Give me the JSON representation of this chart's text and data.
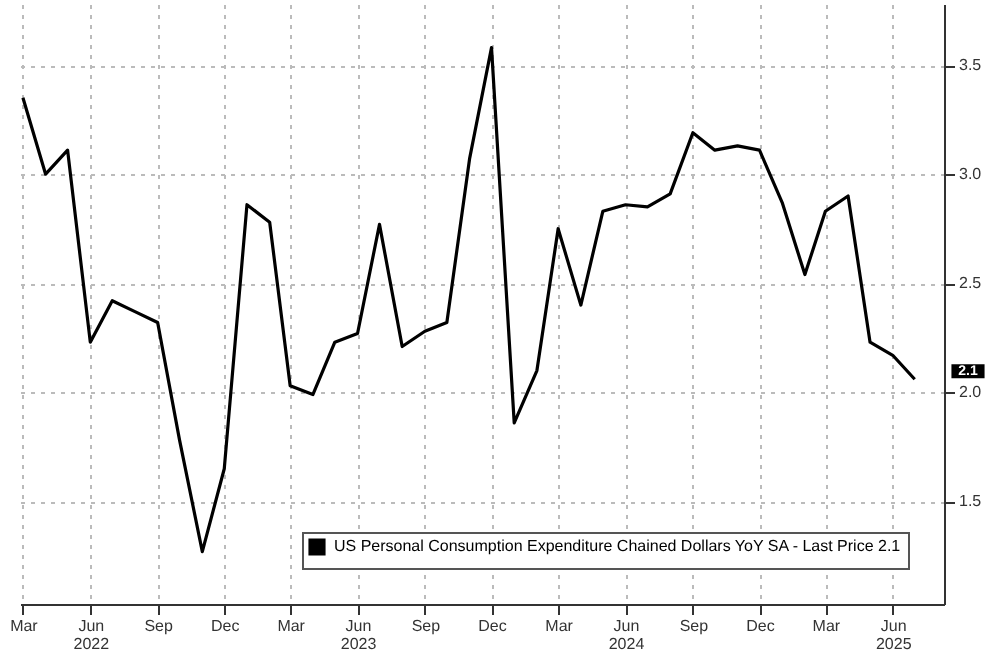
{
  "chart_data": {
    "type": "line",
    "x": [
      "2022-03",
      "2022-04",
      "2022-05",
      "2022-06",
      "2022-07",
      "2022-08",
      "2022-09",
      "2022-10",
      "2022-11",
      "2022-12",
      "2023-01",
      "2023-02",
      "2023-03",
      "2023-04",
      "2023-05",
      "2023-06",
      "2023-07",
      "2023-08",
      "2023-09",
      "2023-10",
      "2023-11",
      "2023-12",
      "2024-01",
      "2024-02",
      "2024-03",
      "2024-04",
      "2024-05",
      "2024-06",
      "2024-07",
      "2024-08",
      "2024-09",
      "2024-10",
      "2024-11",
      "2024-12",
      "2025-01",
      "2025-02",
      "2025-03",
      "2025-04",
      "2025-05",
      "2025-06",
      "2025-07"
    ],
    "series": [
      {
        "name": "US Personal Consumption Expenditure Chained Dollars YoY SA - Last Price 2.1",
        "color": "#000000",
        "values": [
          3.35,
          3.0,
          3.11,
          2.23,
          2.42,
          2.37,
          2.32,
          1.78,
          1.27,
          1.65,
          2.86,
          2.78,
          2.03,
          1.99,
          2.23,
          2.27,
          2.77,
          2.21,
          2.28,
          2.32,
          3.07,
          3.58,
          1.86,
          2.1,
          2.75,
          2.4,
          2.83,
          2.86,
          2.85,
          2.91,
          3.19,
          3.11,
          3.13,
          3.11,
          2.87,
          2.54,
          2.83,
          2.9,
          2.23,
          2.17,
          2.06
        ]
      }
    ],
    "xlim": [
      "2022-02-25",
      "2025-08-10"
    ],
    "xticks": [
      {
        "value": "2022-03",
        "label": "Mar"
      },
      {
        "value": "2022-06",
        "label": "Jun 2022"
      },
      {
        "value": "2022-09",
        "label": "Sep"
      },
      {
        "value": "2022-12",
        "label": "Dec"
      },
      {
        "value": "2023-03",
        "label": "Mar"
      },
      {
        "value": "2023-06",
        "label": "Jun 2023"
      },
      {
        "value": "2023-09",
        "label": "Sep"
      },
      {
        "value": "2023-12",
        "label": "Dec"
      },
      {
        "value": "2024-03",
        "label": "Mar"
      },
      {
        "value": "2024-06",
        "label": "Jun 2024"
      },
      {
        "value": "2024-09",
        "label": "Sep"
      },
      {
        "value": "2024-12",
        "label": "Dec"
      },
      {
        "value": "2025-03",
        "label": "Mar"
      },
      {
        "value": "2025-06",
        "label": "Jun 2025"
      }
    ],
    "ylim": [
      1.03,
      3.78
    ],
    "yticks": [
      1.5,
      {
        "value": 2,
        "label": "2.0"
      },
      2.5,
      {
        "value": 3,
        "label": "3.0"
      },
      3.5
    ],
    "annotations": [
      "2.1"
    ],
    "grid": true,
    "legend": "bottom right",
    "line_style": "solid",
    "marker": "none"
  }
}
